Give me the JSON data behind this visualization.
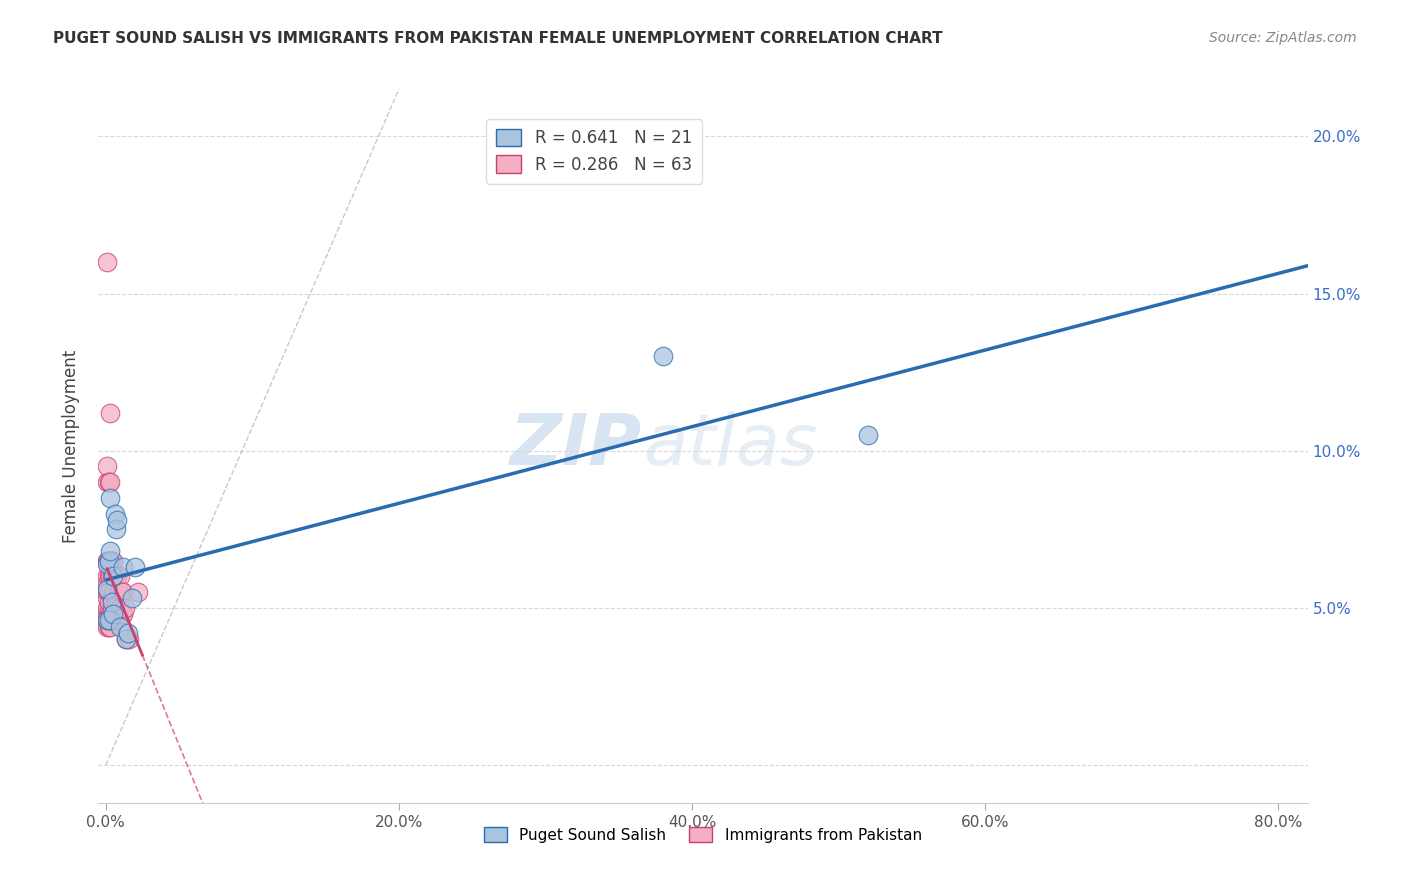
{
  "title": "PUGET SOUND SALISH VS IMMIGRANTS FROM PAKISTAN FEMALE UNEMPLOYMENT CORRELATION CHART",
  "source": "Source: ZipAtlas.com",
  "ylabel": "Female Unemployment",
  "x_ticks": [
    0.0,
    0.2,
    0.4,
    0.6,
    0.8
  ],
  "x_tick_labels": [
    "0.0%",
    "20.0%",
    "40.0%",
    "60.0%",
    "80.0%"
  ],
  "y_ticks": [
    0.0,
    0.05,
    0.1,
    0.15,
    0.2
  ],
  "y_tick_labels_right": [
    "",
    "5.0%",
    "10.0%",
    "15.0%",
    "20.0%"
  ],
  "xlim": [
    -0.005,
    0.82
  ],
  "ylim": [
    -0.012,
    0.215
  ],
  "blue_color": "#aac4e0",
  "pink_color": "#f4afc3",
  "blue_line_color": "#2b6cb0",
  "pink_line_color": "#c94070",
  "legend_R_blue": "0.641",
  "legend_N_blue": "21",
  "legend_R_pink": "0.286",
  "legend_N_pink": "63",
  "legend_label_blue": "Puget Sound Salish",
  "legend_label_pink": "Immigrants from Pakistan",
  "blue_scatter_x": [
    0.001,
    0.001,
    0.001,
    0.002,
    0.002,
    0.003,
    0.003,
    0.004,
    0.005,
    0.005,
    0.006,
    0.007,
    0.008,
    0.01,
    0.012,
    0.014,
    0.015,
    0.018,
    0.02,
    0.38,
    0.52
  ],
  "blue_scatter_y": [
    0.046,
    0.056,
    0.064,
    0.046,
    0.065,
    0.068,
    0.085,
    0.052,
    0.048,
    0.06,
    0.08,
    0.075,
    0.078,
    0.044,
    0.063,
    0.04,
    0.042,
    0.053,
    0.063,
    0.13,
    0.105
  ],
  "pink_scatter_x": [
    0.001,
    0.001,
    0.001,
    0.001,
    0.001,
    0.001,
    0.001,
    0.001,
    0.001,
    0.001,
    0.001,
    0.001,
    0.001,
    0.001,
    0.001,
    0.002,
    0.002,
    0.002,
    0.002,
    0.002,
    0.002,
    0.002,
    0.002,
    0.002,
    0.003,
    0.003,
    0.003,
    0.003,
    0.003,
    0.003,
    0.003,
    0.004,
    0.004,
    0.004,
    0.004,
    0.004,
    0.005,
    0.005,
    0.005,
    0.005,
    0.005,
    0.006,
    0.006,
    0.006,
    0.007,
    0.007,
    0.007,
    0.007,
    0.008,
    0.008,
    0.008,
    0.009,
    0.009,
    0.01,
    0.01,
    0.011,
    0.011,
    0.012,
    0.012,
    0.013,
    0.014,
    0.016,
    0.022
  ],
  "pink_scatter_y": [
    0.045,
    0.047,
    0.048,
    0.05,
    0.053,
    0.056,
    0.058,
    0.06,
    0.065,
    0.065,
    0.09,
    0.095,
    0.044,
    0.16,
    0.055,
    0.044,
    0.046,
    0.048,
    0.05,
    0.052,
    0.055,
    0.06,
    0.065,
    0.09,
    0.044,
    0.046,
    0.048,
    0.06,
    0.065,
    0.09,
    0.112,
    0.047,
    0.05,
    0.053,
    0.06,
    0.065,
    0.046,
    0.048,
    0.055,
    0.06,
    0.065,
    0.046,
    0.05,
    0.06,
    0.048,
    0.052,
    0.06,
    0.048,
    0.048,
    0.053,
    0.06,
    0.048,
    0.055,
    0.05,
    0.06,
    0.048,
    0.055,
    0.048,
    0.055,
    0.05,
    0.04,
    0.04,
    0.055
  ],
  "watermark_zip": "ZIP",
  "watermark_atlas": "atlas",
  "title_fontsize": 11,
  "source_fontsize": 10,
  "blue_line_xlim": 0.82,
  "pink_line_xlim": 0.025,
  "diag_line_color": "#bbbbbb",
  "grid_color": "#d8d8d8"
}
